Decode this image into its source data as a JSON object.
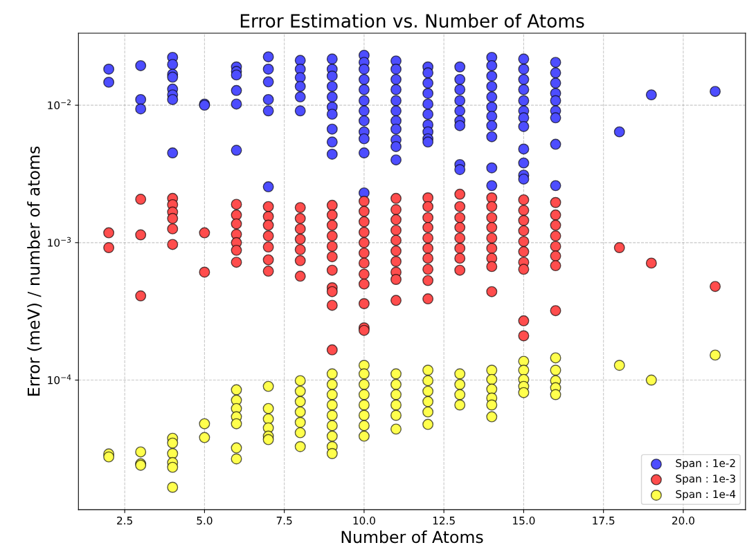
{
  "chart_data": {
    "type": "scatter",
    "title": "Error Estimation vs. Number of Atoms",
    "xlabel": "Number of Atoms",
    "ylabel": "Error (meV) / number of atoms",
    "log": "y",
    "grid": true,
    "legend": "bottom right",
    "marker": "circle",
    "xlim": [
      1.05,
      21.95
    ],
    "xticks": [
      {
        "value": 2.5,
        "label": "2.5"
      },
      {
        "value": 5,
        "label": "5.0"
      },
      {
        "value": 7.5,
        "label": "7.5"
      },
      {
        "value": 10,
        "label": "10.0"
      },
      {
        "value": 12.5,
        "label": "12.5"
      },
      {
        "value": 15,
        "label": "15.0"
      },
      {
        "value": 17.5,
        "label": "17.5"
      },
      {
        "value": 20,
        "label": "20.0"
      }
    ],
    "ylim": [
      1.14e-05,
      0.0334
    ],
    "yticks": [
      {
        "value": 0.0001,
        "label": "10$^{−4}$"
      },
      {
        "value": 0.001,
        "label": "10$^{−3}$"
      },
      {
        "value": 0.01,
        "label": "10$^{−2}$"
      }
    ],
    "series": [
      {
        "name": "Span : 1e-2",
        "color": "#4d4dff",
        "x": [
          2,
          2,
          3,
          3,
          3,
          4,
          4,
          4,
          4,
          4,
          4,
          4,
          4,
          5,
          5,
          6,
          6,
          6,
          6,
          6,
          6,
          7,
          7,
          7,
          7,
          7,
          7,
          8,
          8,
          8,
          8,
          8,
          8,
          9,
          9,
          9,
          9,
          9,
          9,
          9,
          9,
          9,
          9,
          10,
          10,
          10,
          10,
          10,
          10,
          10,
          10,
          10,
          10,
          10,
          10,
          11,
          11,
          11,
          11,
          11,
          11,
          11,
          11,
          11,
          11,
          11,
          12,
          12,
          12,
          12,
          12,
          12,
          12,
          12,
          12,
          12,
          13,
          13,
          13,
          13,
          13,
          13,
          13,
          13,
          13,
          14,
          14,
          14,
          14,
          14,
          14,
          14,
          14,
          14,
          14,
          14,
          15,
          15,
          15,
          15,
          15,
          15,
          15,
          15,
          15,
          15,
          15,
          15,
          16,
          16,
          16,
          16,
          16,
          16,
          16,
          16,
          16,
          18,
          19,
          21
        ],
        "values": [
          0.0183,
          0.0147,
          0.0194,
          0.011,
          0.0094,
          0.0223,
          0.0198,
          0.0168,
          0.016,
          0.0131,
          0.0119,
          0.011,
          0.0045,
          0.0102,
          0.01,
          0.019,
          0.0176,
          0.0166,
          0.0128,
          0.0102,
          0.0047,
          0.0225,
          0.0183,
          0.0148,
          0.011,
          0.0091,
          0.00255,
          0.0212,
          0.0183,
          0.0159,
          0.0137,
          0.0115,
          0.0091,
          0.0217,
          0.0183,
          0.0163,
          0.0137,
          0.0115,
          0.0097,
          0.0086,
          0.0067,
          0.0054,
          0.0044,
          0.0231,
          0.0205,
          0.0183,
          0.0154,
          0.013,
          0.0108,
          0.0091,
          0.0077,
          0.0064,
          0.0057,
          0.0045,
          0.0023,
          0.021,
          0.0183,
          0.0154,
          0.013,
          0.0108,
          0.0091,
          0.0077,
          0.0067,
          0.0056,
          0.005,
          0.004,
          0.019,
          0.0172,
          0.0145,
          0.0122,
          0.0102,
          0.0086,
          0.0072,
          0.0064,
          0.0057,
          0.0054,
          0.019,
          0.0154,
          0.013,
          0.0108,
          0.0091,
          0.0077,
          0.0071,
          0.0037,
          0.0034,
          0.0223,
          0.0194,
          0.0163,
          0.0137,
          0.0115,
          0.0097,
          0.0083,
          0.0071,
          0.0059,
          0.0035,
          0.0026,
          0.0217,
          0.0183,
          0.0154,
          0.013,
          0.0108,
          0.0091,
          0.0081,
          0.007,
          0.0048,
          0.0038,
          0.0031,
          0.0029,
          0.0205,
          0.0172,
          0.0145,
          0.0122,
          0.0108,
          0.0091,
          0.0081,
          0.0052,
          0.0026,
          0.0064,
          0.0119,
          0.0126
        ]
      },
      {
        "name": "Span : 1e-3",
        "color": "#ff4d4d",
        "x": [
          2,
          2,
          3,
          3,
          3,
          4,
          4,
          4,
          4,
          4,
          4,
          5,
          5,
          6,
          6,
          6,
          6,
          6,
          6,
          6,
          7,
          7,
          7,
          7,
          7,
          7,
          7,
          8,
          8,
          8,
          8,
          8,
          8,
          8,
          9,
          9,
          9,
          9,
          9,
          9,
          9,
          9,
          9,
          9,
          9,
          10,
          10,
          10,
          10,
          10,
          10,
          10,
          10,
          10,
          10,
          10,
          10,
          11,
          11,
          11,
          11,
          11,
          11,
          11,
          11,
          11,
          11,
          12,
          12,
          12,
          12,
          12,
          12,
          12,
          12,
          12,
          12,
          13,
          13,
          13,
          13,
          13,
          13,
          13,
          13,
          14,
          14,
          14,
          14,
          14,
          14,
          14,
          14,
          14,
          15,
          15,
          15,
          15,
          15,
          15,
          15,
          15,
          15,
          15,
          16,
          16,
          16,
          16,
          16,
          16,
          16,
          16,
          18,
          19,
          21
        ],
        "values": [
          0.00118,
          0.00092,
          0.00207,
          0.00114,
          0.00041,
          0.0021,
          0.00189,
          0.00167,
          0.0015,
          0.00126,
          0.00097,
          0.00118,
          0.00061,
          0.0019,
          0.00159,
          0.00137,
          0.00115,
          0.001,
          0.00088,
          0.00072,
          0.00183,
          0.00155,
          0.00134,
          0.00112,
          0.00093,
          0.00075,
          0.00062,
          0.0018,
          0.0015,
          0.00126,
          0.00106,
          0.00089,
          0.00074,
          0.00057,
          0.00187,
          0.00159,
          0.00134,
          0.00112,
          0.00094,
          0.00079,
          0.00063,
          0.00047,
          0.00044,
          0.00035,
          0.000166,
          0.002,
          0.00169,
          0.00142,
          0.00119,
          0.001,
          0.00084,
          0.00071,
          0.00059,
          0.0005,
          0.00036,
          0.00024,
          0.00023,
          0.0021,
          0.00174,
          0.00147,
          0.00123,
          0.00104,
          0.00087,
          0.00073,
          0.00061,
          0.00054,
          0.00038,
          0.00212,
          0.00183,
          0.00152,
          0.00129,
          0.00108,
          0.00091,
          0.00077,
          0.00064,
          0.00053,
          0.00039,
          0.00225,
          0.00183,
          0.00152,
          0.00129,
          0.00108,
          0.00091,
          0.00077,
          0.00063,
          0.00212,
          0.00183,
          0.00152,
          0.00129,
          0.00108,
          0.00091,
          0.00077,
          0.00067,
          0.00044,
          0.00205,
          0.00172,
          0.00145,
          0.00122,
          0.00102,
          0.00086,
          0.00072,
          0.00064,
          0.00027,
          0.00021,
          0.00196,
          0.00159,
          0.00134,
          0.00112,
          0.00094,
          0.0008,
          0.00068,
          0.00032,
          0.00092,
          0.00071,
          0.00048
        ]
      },
      {
        "name": "Span : 1e-4",
        "color": "#ffff4d",
        "x": [
          2,
          2,
          3,
          3,
          3,
          4,
          4,
          4,
          4,
          4,
          4,
          5,
          5,
          6,
          6,
          6,
          6,
          6,
          6,
          6,
          7,
          7,
          7,
          7,
          7,
          7,
          8,
          8,
          8,
          8,
          8,
          8,
          8,
          9,
          9,
          9,
          9,
          9,
          9,
          9,
          9,
          9,
          10,
          10,
          10,
          10,
          10,
          10,
          10,
          10,
          11,
          11,
          11,
          11,
          11,
          11,
          12,
          12,
          12,
          12,
          12,
          12,
          13,
          13,
          13,
          13,
          14,
          14,
          14,
          14,
          14,
          14,
          15,
          15,
          15,
          15,
          15,
          16,
          16,
          16,
          16,
          16,
          18,
          19,
          21
        ],
        "values": [
          2.9e-05,
          2.76e-05,
          3e-05,
          2.46e-05,
          2.4e-05,
          3.77e-05,
          3.48e-05,
          2.92e-05,
          2.51e-05,
          2.32e-05,
          1.66e-05,
          4.81e-05,
          3.82e-05,
          8.5e-05,
          7.14e-05,
          6.21e-05,
          5.41e-05,
          4.81e-05,
          3.21e-05,
          2.67e-05,
          9e-05,
          6.21e-05,
          5.22e-05,
          4.49e-05,
          3.91e-05,
          3.69e-05,
          9.9e-05,
          8.3e-05,
          6.98e-05,
          5.86e-05,
          4.92e-05,
          4.14e-05,
          3.28e-05,
          0.000111,
          9.3e-05,
          7.84e-05,
          6.59e-05,
          5.54e-05,
          4.66e-05,
          3.91e-05,
          3.28e-05,
          2.92e-05,
          0.000128,
          0.000111,
          9.3e-05,
          7.84e-05,
          6.59e-05,
          5.54e-05,
          4.66e-05,
          3.91e-05,
          0.000111,
          9.3e-05,
          7.84e-05,
          6.59e-05,
          5.54e-05,
          4.4e-05,
          0.000118,
          9.9e-05,
          8.3e-05,
          6.98e-05,
          5.86e-05,
          4.76e-05,
          0.000111,
          9.3e-05,
          7.84e-05,
          6.59e-05,
          0.000118,
          0.000101,
          8.6e-05,
          7.4e-05,
          6.59e-05,
          5.41e-05,
          0.000137,
          0.000118,
          0.000101,
          9e-05,
          8.1e-05,
          0.000145,
          0.000118,
          9.9e-05,
          8.8e-05,
          7.84e-05,
          0.000128,
          0.0001,
          0.000152
        ]
      }
    ]
  }
}
